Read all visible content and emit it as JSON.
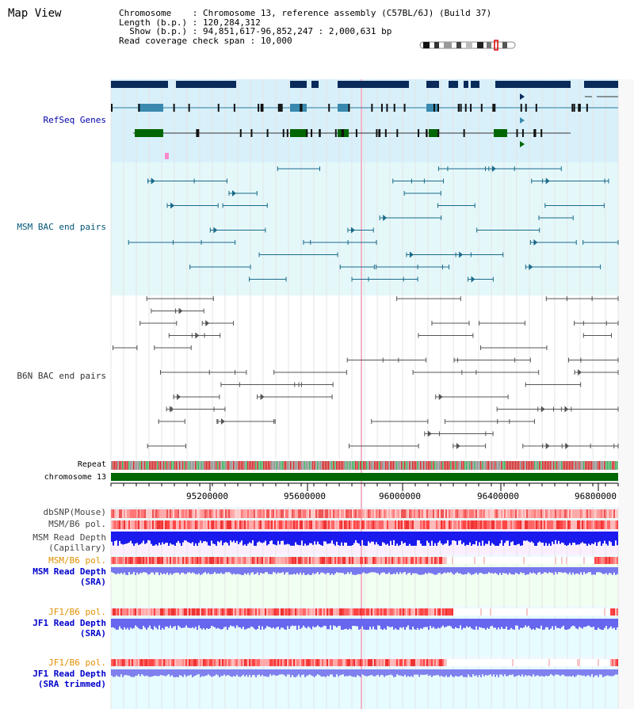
{
  "title": "Map View",
  "info": {
    "chromosome_key": "Chromosome",
    "chromosome_val": "Chromosome 13, reference assembly (C57BL/6J) (Build 37)",
    "length_key": "Length (b.p.)",
    "length_val": "120,284,312",
    "show_key": "Show (b.p.)",
    "show_val": "94,851,617-96,852,247 : 2,000,631 bp",
    "coverage_key": "Read coverage check span",
    "coverage_val": "10,000"
  },
  "tracks": {
    "refseq": "RefSeq Genes",
    "msm_bac": "MSM BAC end pairs",
    "b6n_bac": "B6N BAC end pairs",
    "repeat": "Repeat",
    "chromosome": "chromosome 13",
    "dbsnp": "dbSNP(Mouse)",
    "msm_b6_pol_1": "MSM/B6 pol.",
    "msm_depth_cap_1": "MSM Read Depth",
    "msm_depth_cap_2": "(Capillary)",
    "msm_b6_pol_2": "MSM/B6 pol.",
    "msm_depth_sra_1": "MSM Read Depth",
    "msm_depth_sra_2": "(SRA)",
    "jf1_b6_pol_1": "JF1/B6 pol.",
    "jf1_depth_sra_1": "JF1 Read Depth",
    "jf1_depth_sra_2": "(SRA)",
    "jf1_b6_pol_2": "JF1/B6 pol.",
    "jf1_depth_trim_1": "JF1 Read Depth",
    "jf1_depth_trim_2": "(SRA trimmed)"
  },
  "axis": {
    "ticks": [
      "95200000",
      "95600000",
      "96000000",
      "96400000",
      "96800000"
    ]
  },
  "colors": {
    "refseq_bg": "#d8f0fa",
    "msm_bg": "#e4f8fa",
    "gene_dark": "#0a2a5a",
    "gene_mid": "#3a8ab0",
    "gene_green": "#006600",
    "chromosome_bar": "#006600",
    "depth_blue": "#1a1aee",
    "depth_light": "#7070ee"
  }
}
